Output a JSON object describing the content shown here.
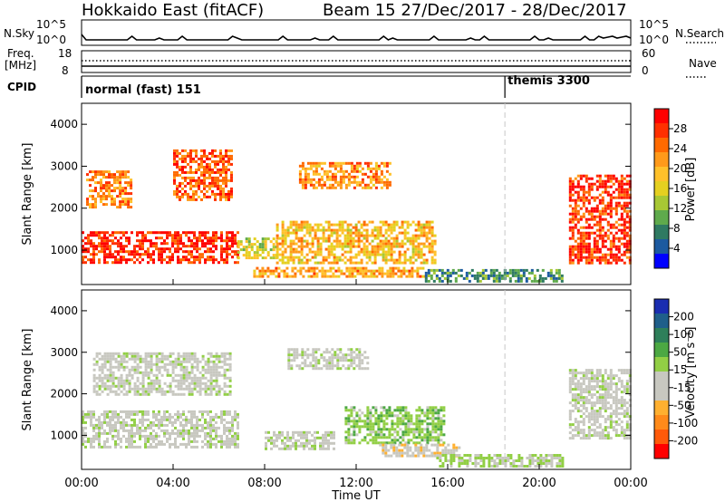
{
  "header": {
    "station": "Hokkaido East (fitACF)",
    "beam_date": "Beam 15  27/Dec/2017 - 28/Dec/2017"
  },
  "top_panels": {
    "nsky_label": "N.Sky",
    "nsky_ticks": [
      "10^5",
      "10^0"
    ],
    "nsky_right_ticks": [
      "10^5",
      "10^0"
    ],
    "nsearch_label": "N.Search",
    "freq_label": "Freq.",
    "freq_unit": "[MHz]",
    "freq_ticks": [
      "18",
      "8"
    ],
    "nave_ticks": [
      "60",
      "0"
    ],
    "nave_label": "Nave",
    "cpid_label": "CPID",
    "cpid_segments": [
      {
        "label": "normal (fast) 151",
        "start_h": 0
      },
      {
        "label": "themis 3300",
        "start_h": 18.5
      }
    ]
  },
  "power_colorbar": {
    "title": "Power [dB]",
    "ticks": [
      "28",
      "24",
      "20",
      "16",
      "12",
      "8",
      "4"
    ],
    "colors": [
      "#ff0000",
      "#ff3000",
      "#ff6a00",
      "#ff9a1a",
      "#ffc12a",
      "#e5d020",
      "#a8c834",
      "#5faa4c",
      "#2f7a62",
      "#1c5aa0",
      "#0000ff"
    ]
  },
  "velocity_colorbar": {
    "title": "Velocity [m s⁻¹]",
    "ticks": [
      "200",
      "100",
      "50",
      "15",
      "-15",
      "-50",
      "-100",
      "-200"
    ],
    "colors": [
      "#1a2db0",
      "#1f5f8a",
      "#2e7f5a",
      "#4ca843",
      "#92cf45",
      "#c8c8c0",
      "#c8c8c0",
      "#ffb030",
      "#ff8a1a",
      "#ff5a0a",
      "#ff0000"
    ]
  },
  "y_axis": {
    "label": "Slant Range [km]",
    "ticks": [
      "4000",
      "3000",
      "2000",
      "1000"
    ]
  },
  "x_axis": {
    "label": "Time UT",
    "ticks": [
      "00:00",
      "04:00",
      "08:00",
      "12:00",
      "16:00",
      "20:00",
      "00:00"
    ]
  },
  "chart_data": {
    "type": "heatmap",
    "title": "Hokkaido East (fitACF)  Beam 15  27/Dec/2017 - 28/Dec/2017",
    "xlabel": "Time UT",
    "ylabel": "Slant Range [km]",
    "xlim_hours": [
      0,
      24
    ],
    "ylim_km": [
      180,
      4500
    ],
    "panels": [
      {
        "name": "Power",
        "units": "dB",
        "scale": [
          0,
          30
        ],
        "regions": [
          {
            "t0": 0.0,
            "t1": 6.8,
            "r0": 700,
            "r1": 1450,
            "value": 27
          },
          {
            "t0": 0.2,
            "t1": 2.2,
            "r0": 2000,
            "r1": 2900,
            "value": 22
          },
          {
            "t0": 4.0,
            "t1": 6.5,
            "r0": 2200,
            "r1": 3400,
            "value": 24
          },
          {
            "t0": 6.8,
            "t1": 8.5,
            "r0": 800,
            "r1": 1300,
            "value": 14
          },
          {
            "t0": 8.5,
            "t1": 15.5,
            "r0": 700,
            "r1": 1700,
            "value": 18
          },
          {
            "t0": 7.5,
            "t1": 15.0,
            "r0": 350,
            "r1": 600,
            "value": 20
          },
          {
            "t0": 9.5,
            "t1": 13.5,
            "r0": 2500,
            "r1": 3100,
            "value": 21
          },
          {
            "t0": 15.0,
            "t1": 21.0,
            "r0": 250,
            "r1": 550,
            "value": 8
          },
          {
            "t0": 21.3,
            "t1": 24.0,
            "r0": 700,
            "r1": 2800,
            "value": 26
          }
        ]
      },
      {
        "name": "Velocity",
        "units": "m s-1",
        "scale": [
          -200,
          200
        ],
        "regions": [
          {
            "t0": 0.0,
            "t1": 6.8,
            "r0": 700,
            "r1": 1600,
            "value": 0
          },
          {
            "t0": 0.5,
            "t1": 6.5,
            "r0": 2000,
            "r1": 3000,
            "value": 0
          },
          {
            "t0": 8.0,
            "t1": 11.0,
            "r0": 700,
            "r1": 1100,
            "value": 5
          },
          {
            "t0": 11.5,
            "t1": 15.8,
            "r0": 800,
            "r1": 1700,
            "value": 40
          },
          {
            "t0": 13.0,
            "t1": 16.5,
            "r0": 500,
            "r1": 800,
            "value": -40
          },
          {
            "t0": 15.5,
            "t1": 21.0,
            "r0": 250,
            "r1": 550,
            "value": 25
          },
          {
            "t0": 9.0,
            "t1": 12.5,
            "r0": 2600,
            "r1": 3100,
            "value": 0
          },
          {
            "t0": 21.3,
            "t1": 24.0,
            "r0": 900,
            "r1": 2600,
            "value": 0
          }
        ]
      }
    ]
  }
}
